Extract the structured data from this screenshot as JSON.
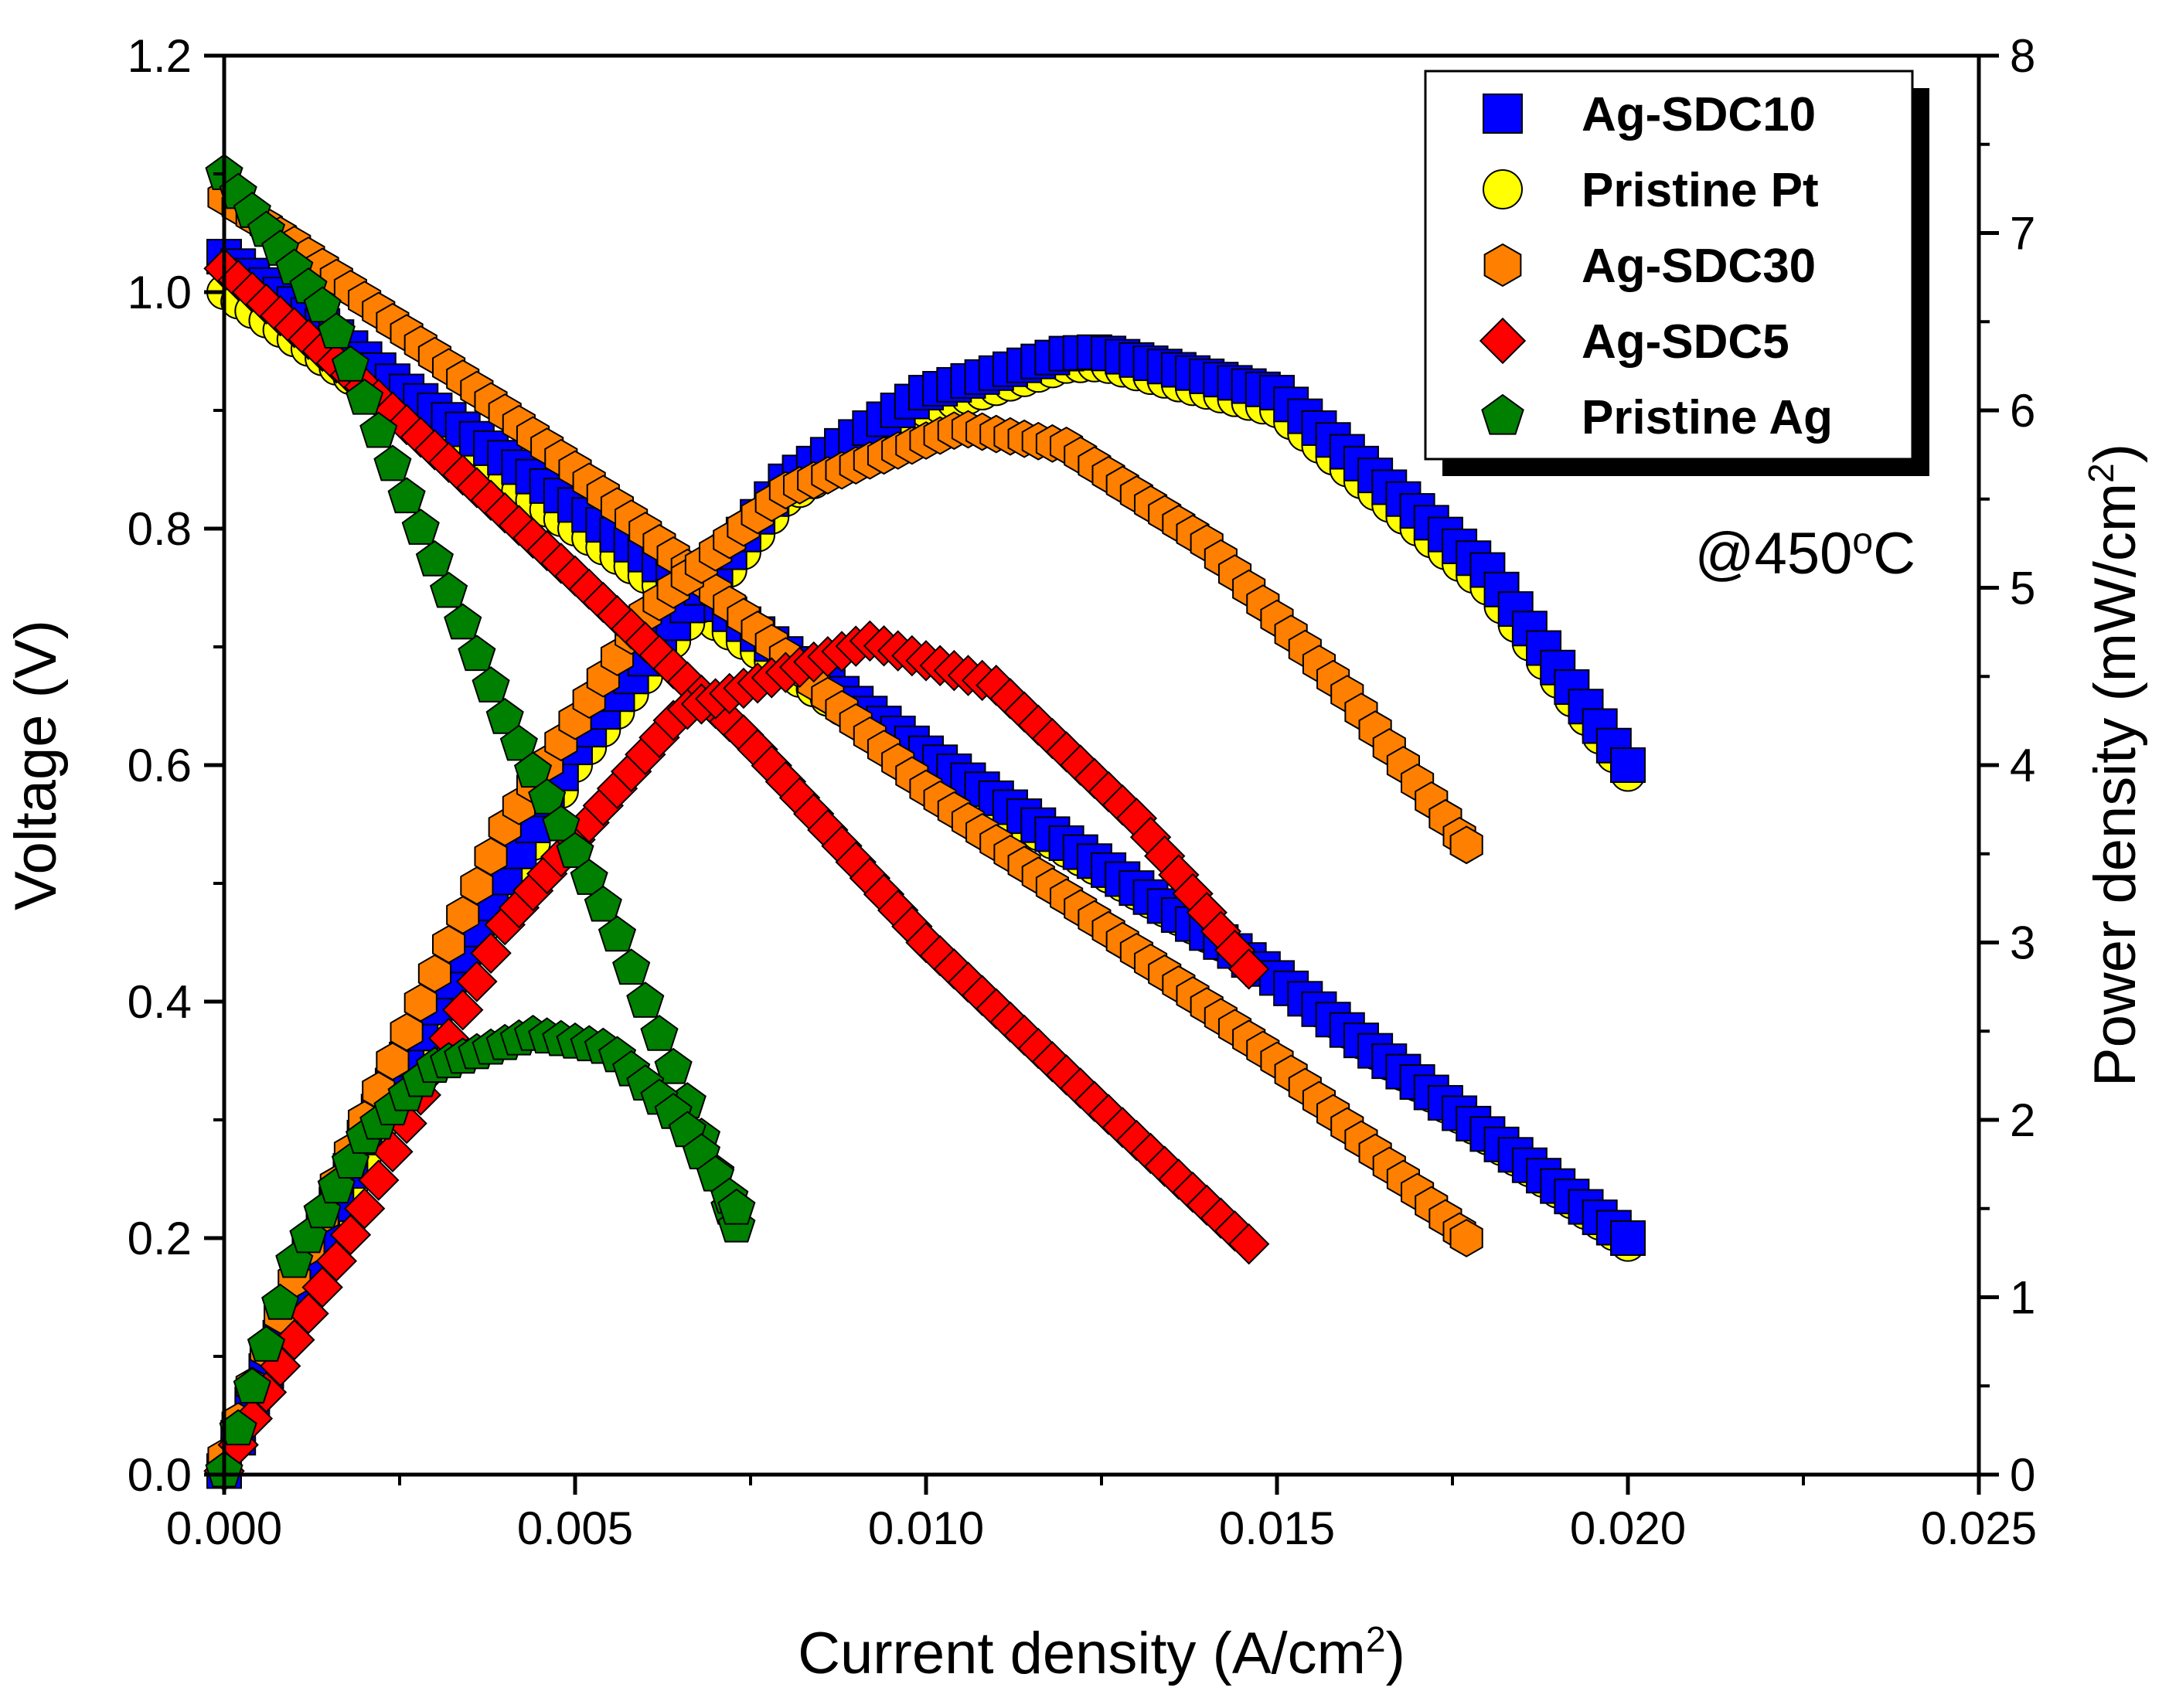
{
  "chart_data": {
    "type": "scatter",
    "annotation": {
      "prefix": "@450",
      "sup": "o",
      "suffix": "C"
    },
    "x_axis": {
      "title_main": "Current density (A/cm",
      "title_sup": "2",
      "title_end": ")",
      "range": [
        0,
        0.025
      ],
      "ticks": [
        "0.000",
        "0.005",
        "0.010",
        "0.015",
        "0.020",
        "0.025"
      ]
    },
    "y_left": {
      "title": "Voltage (V)",
      "range": [
        0,
        1.2
      ],
      "ticks": [
        "0.0",
        "0.2",
        "0.4",
        "0.6",
        "0.8",
        "1.0",
        "1.2"
      ]
    },
    "y_right": {
      "title_main": "Power density (mW/cm",
      "title_sup": "2",
      "title_end": ")",
      "range": [
        0,
        8
      ],
      "ticks": [
        "0",
        "1",
        "2",
        "3",
        "4",
        "5",
        "6",
        "7",
        "8"
      ]
    },
    "series": [
      {
        "name": "Pristine Pt",
        "marker": "circle",
        "color": "#ffff00",
        "iv": {
          "x_max": 0.02,
          "points": [
            [
              0,
              1.0
            ],
            [
              0.001,
              0.96
            ],
            [
              0.0025,
              0.9
            ],
            [
              0.005,
              0.8
            ],
            [
              0.01,
              0.6
            ],
            [
              0.015,
              0.42
            ],
            [
              0.02,
              0.195
            ]
          ]
        },
        "power": {
          "x_max": 0.02,
          "points": [
            [
              0,
              0.02
            ],
            [
              0.002,
              1.8
            ],
            [
              0.005,
              4.0
            ],
            [
              0.008,
              5.5
            ],
            [
              0.01,
              6.0
            ],
            [
              0.012,
              6.25
            ],
            [
              0.0125,
              6.26
            ],
            [
              0.015,
              6.0
            ],
            [
              0.018,
              5.0
            ],
            [
              0.02,
              3.95
            ]
          ]
        }
      },
      {
        "name": "Ag-SDC10",
        "marker": "square",
        "color": "#0000ff",
        "iv": {
          "x_max": 0.02,
          "points": [
            [
              0,
              1.03
            ],
            [
              0.001,
              0.99
            ],
            [
              0.0025,
              0.92
            ],
            [
              0.005,
              0.82
            ],
            [
              0.01,
              0.61
            ],
            [
              0.015,
              0.42
            ],
            [
              0.02,
              0.2
            ]
          ]
        },
        "power": {
          "x_max": 0.02,
          "points": [
            [
              0,
              0.02
            ],
            [
              0.002,
              1.9
            ],
            [
              0.005,
              4.1
            ],
            [
              0.008,
              5.6
            ],
            [
              0.01,
              6.1
            ],
            [
              0.012,
              6.32
            ],
            [
              0.0125,
              6.33
            ],
            [
              0.015,
              6.1
            ],
            [
              0.018,
              5.1
            ],
            [
              0.02,
              4.0
            ]
          ]
        }
      },
      {
        "name": "Ag-SDC30",
        "marker": "hexagon",
        "color": "#ff8000",
        "iv": {
          "x_max": 0.0177,
          "points": [
            [
              0,
              1.08
            ],
            [
              0.001,
              1.04
            ],
            [
              0.0025,
              0.97
            ],
            [
              0.005,
              0.85
            ],
            [
              0.0075,
              0.72
            ],
            [
              0.01,
              0.58
            ],
            [
              0.015,
              0.35
            ],
            [
              0.0177,
              0.2
            ]
          ]
        },
        "power": {
          "x_max": 0.0177,
          "points": [
            [
              0,
              0.1
            ],
            [
              0.001,
              1.1
            ],
            [
              0.002,
              2.0
            ],
            [
              0.004,
              3.65
            ],
            [
              0.006,
              4.85
            ],
            [
              0.008,
              5.55
            ],
            [
              0.0105,
              5.9
            ],
            [
              0.012,
              5.8
            ],
            [
              0.014,
              5.25
            ],
            [
              0.016,
              4.4
            ],
            [
              0.0177,
              3.55
            ]
          ]
        }
      },
      {
        "name": "Ag-SDC5",
        "marker": "diamond",
        "color": "#ff0000",
        "iv": {
          "x_max": 0.0146,
          "points": [
            [
              0,
              1.02
            ],
            [
              0.001,
              0.97
            ],
            [
              0.002,
              0.92
            ],
            [
              0.005,
              0.76
            ],
            [
              0.0075,
              0.62
            ],
            [
              0.01,
              0.45
            ],
            [
              0.0125,
              0.31
            ],
            [
              0.0146,
              0.195
            ]
          ]
        },
        "power": {
          "x_max": 0.0146,
          "points": [
            [
              0,
              0.02
            ],
            [
              0.002,
              1.5
            ],
            [
              0.004,
              3.1
            ],
            [
              0.0065,
              4.3
            ],
            [
              0.0092,
              4.7
            ],
            [
              0.011,
              4.45
            ],
            [
              0.013,
              3.7
            ],
            [
              0.0146,
              2.85
            ]
          ]
        }
      },
      {
        "name": "Pristine Ag",
        "marker": "pentagon",
        "color": "#008000",
        "iv": {
          "x_max": 0.0073,
          "points": [
            [
              0,
              1.1
            ],
            [
              0.0015,
              0.98
            ],
            [
              0.0025,
              0.84
            ],
            [
              0.004,
              0.64
            ],
            [
              0.0055,
              0.47
            ],
            [
              0.0065,
              0.33
            ],
            [
              0.0073,
              0.21
            ]
          ]
        },
        "power": {
          "x_max": 0.0073,
          "points": [
            [
              0,
              0.02
            ],
            [
              0.001,
              1.2
            ],
            [
              0.002,
              1.9
            ],
            [
              0.003,
              2.3
            ],
            [
              0.0044,
              2.48
            ],
            [
              0.0055,
              2.4
            ],
            [
              0.0065,
              2.0
            ],
            [
              0.0073,
              1.5
            ]
          ]
        }
      }
    ],
    "legend": {
      "placement": "top-right",
      "order": [
        "Ag-SDC10",
        "Pristine Pt",
        "Ag-SDC30",
        "Ag-SDC5",
        "Pristine Ag"
      ]
    }
  }
}
